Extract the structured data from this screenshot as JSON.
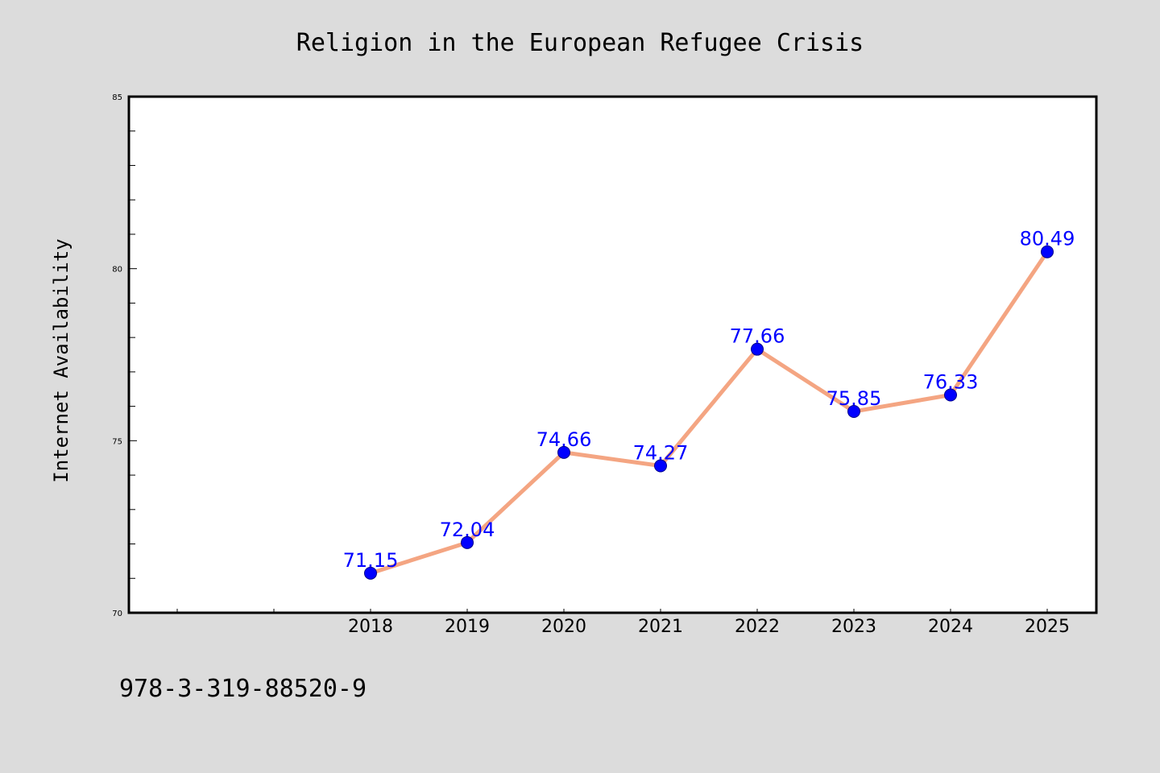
{
  "colors": {
    "background": "#dcdcdc",
    "plot_background": "#ffffff",
    "line": "#f4a582",
    "marker": "#0000ff",
    "label": "#0000ff"
  },
  "footer": {
    "code": "978-3-319-88520-9"
  },
  "chart_data": {
    "type": "line",
    "title": "Religion in the European Refugee Crisis",
    "xlabel": "",
    "ylabel": "Internet Availability",
    "ylim": [
      70,
      85
    ],
    "yticks": [
      "70",
      "75",
      "80",
      "85"
    ],
    "categories": [
      "2018",
      "2019",
      "2020",
      "2021",
      "2022",
      "2023",
      "2024",
      "2025"
    ],
    "series": [
      {
        "values": [
          71.15,
          72.04,
          74.66,
          74.27,
          77.66,
          75.85,
          76.33,
          80.49
        ]
      }
    ],
    "data_labels": [
      "71.15",
      "72.04",
      "74.66",
      "74.27",
      "77.66",
      "75.85",
      "76.33",
      "80.49"
    ],
    "grid": false,
    "legend": "none"
  }
}
